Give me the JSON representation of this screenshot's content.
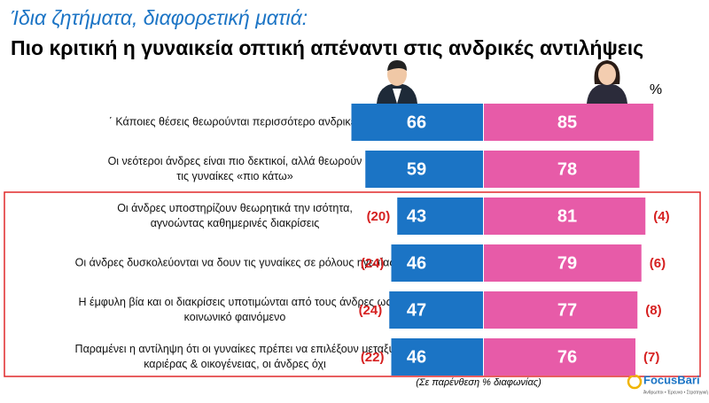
{
  "chart_data": {
    "type": "butterfly-bar",
    "title": "Ίδια ζητήματα, διαφορετική ματιά:",
    "subtitle": "Πιο κριτική η γυναικεία οπτική απέναντι στις ανδρικές αντιλήψεις",
    "unit_label": "%",
    "note": "(Σε παρένθεση % διαφωνίας)",
    "logo": "FocusBari",
    "logo_tagline": "Άνθρωποι • Έρευνα • Στρατηγική",
    "categories": [
      [
        "΄ Κάποιες θέσεις θεωρούνται περισσότερο ανδρικές"
      ],
      [
        "Οι νεότεροι άνδρες είναι πιο δεκτικοί, αλλά θεωρούν",
        "τις γυναίκες «πιο κάτω»"
      ],
      [
        "Οι άνδρες υποστηρίζουν θεωρητικά την ισότητα,",
        "αγνοώντας καθημερινές διακρίσεις"
      ],
      [
        "Οι άνδρες δυσκολεύονται να δουν τις γυναίκες σε ρόλους ηγεσίας"
      ],
      [
        "Η έμφυλη βία και οι διακρίσεις υποτιμώνται από τους άνδρες ως",
        "κοινωνικό φαινόμενο"
      ],
      [
        "Παραμένει η αντίληψη ότι οι γυναίκες πρέπει να επιλέξουν μεταξύ",
        "καριέρας & οικογένειας, οι άνδρες όχι"
      ]
    ],
    "series": [
      {
        "color": "#1b74c5",
        "values": [
          66,
          59,
          43,
          46,
          47,
          46
        ],
        "disagree": [
          null,
          null,
          20,
          24,
          24,
          22
        ],
        "disagree_labels": [
          null,
          null,
          "(20)",
          "(24)",
          "(24)",
          "(22)"
        ]
      },
      {
        "color": "#e75ba8",
        "values": [
          85,
          78,
          81,
          79,
          77,
          76
        ],
        "disagree": [
          null,
          null,
          4,
          6,
          8,
          7
        ],
        "disagree_labels": [
          null,
          null,
          "(4)",
          "(6)",
          "(8)",
          "(7)"
        ]
      }
    ],
    "highlight_rows": [
      2,
      5
    ]
  }
}
